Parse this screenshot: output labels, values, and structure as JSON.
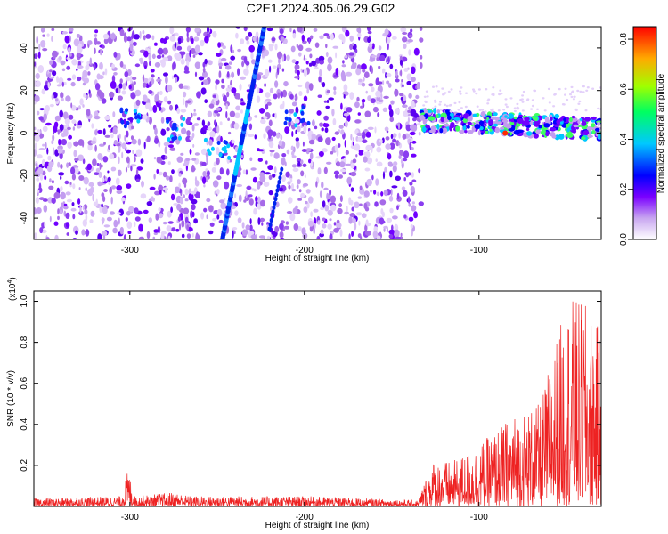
{
  "title": "C2E1.2024.305.06.29.G02",
  "chart_data": [
    {
      "type": "heatmap",
      "xlabel": "Height of straight line (km)",
      "ylabel": "Frequency (Hz)",
      "xlim": [
        -355,
        -30
      ],
      "ylim": [
        -50,
        50
      ],
      "xticks": [
        -300,
        -200,
        -100
      ],
      "yticks": [
        -40,
        -20,
        0,
        20,
        40
      ],
      "colorbar": {
        "label": "Normalized spectral amplitude",
        "range": [
          0.0,
          0.85
        ],
        "ticks": [
          "0.0",
          "0.2",
          "0.4",
          "0.6",
          "0.8"
        ]
      },
      "features": {
        "diagonal_streak": {
          "x_start": -247,
          "y_start": -50,
          "x_end": -223,
          "y_end": 50
        },
        "short_streak": {
          "x_start": -220,
          "y_start": -45,
          "x_end": -213,
          "y_end": -17
        },
        "noise_boundary_x": -133,
        "horizontal_band": {
          "x_start": -133,
          "x_end": -30,
          "y_start": 6,
          "y_end": 2
        },
        "peak": {
          "x": -85,
          "y": 0
        }
      },
      "grid": false
    },
    {
      "type": "line",
      "xlabel": "Height of straight line (km)",
      "ylabel": "SNR (10 * v/v)",
      "yscale_label": "(x10",
      "yscale_exp": "4",
      "yscale_close": ")",
      "xlim": [
        -355,
        -30
      ],
      "ylim": [
        0,
        1.05
      ],
      "xticks": [
        -300,
        -200,
        -100
      ],
      "yticks": [
        "0.2",
        "0.4",
        "0.6",
        "0.8",
        "1.0"
      ],
      "series": [
        {
          "color": "#ee2222"
        }
      ],
      "envelope": [
        {
          "x": -355,
          "y": 0.04
        },
        {
          "x": -305,
          "y": 0.05
        },
        {
          "x": -301,
          "y": 0.18
        },
        {
          "x": -297,
          "y": 0.05
        },
        {
          "x": -275,
          "y": 0.07
        },
        {
          "x": -265,
          "y": 0.05
        },
        {
          "x": -200,
          "y": 0.05
        },
        {
          "x": -135,
          "y": 0.03
        },
        {
          "x": -127,
          "y": 0.22
        },
        {
          "x": -115,
          "y": 0.22
        },
        {
          "x": -100,
          "y": 0.3
        },
        {
          "x": -80,
          "y": 0.45
        },
        {
          "x": -65,
          "y": 0.5
        },
        {
          "x": -55,
          "y": 0.85
        },
        {
          "x": -48,
          "y": 1.02
        },
        {
          "x": -40,
          "y": 1.0
        },
        {
          "x": -30,
          "y": 0.85
        }
      ],
      "grid": false
    }
  ]
}
